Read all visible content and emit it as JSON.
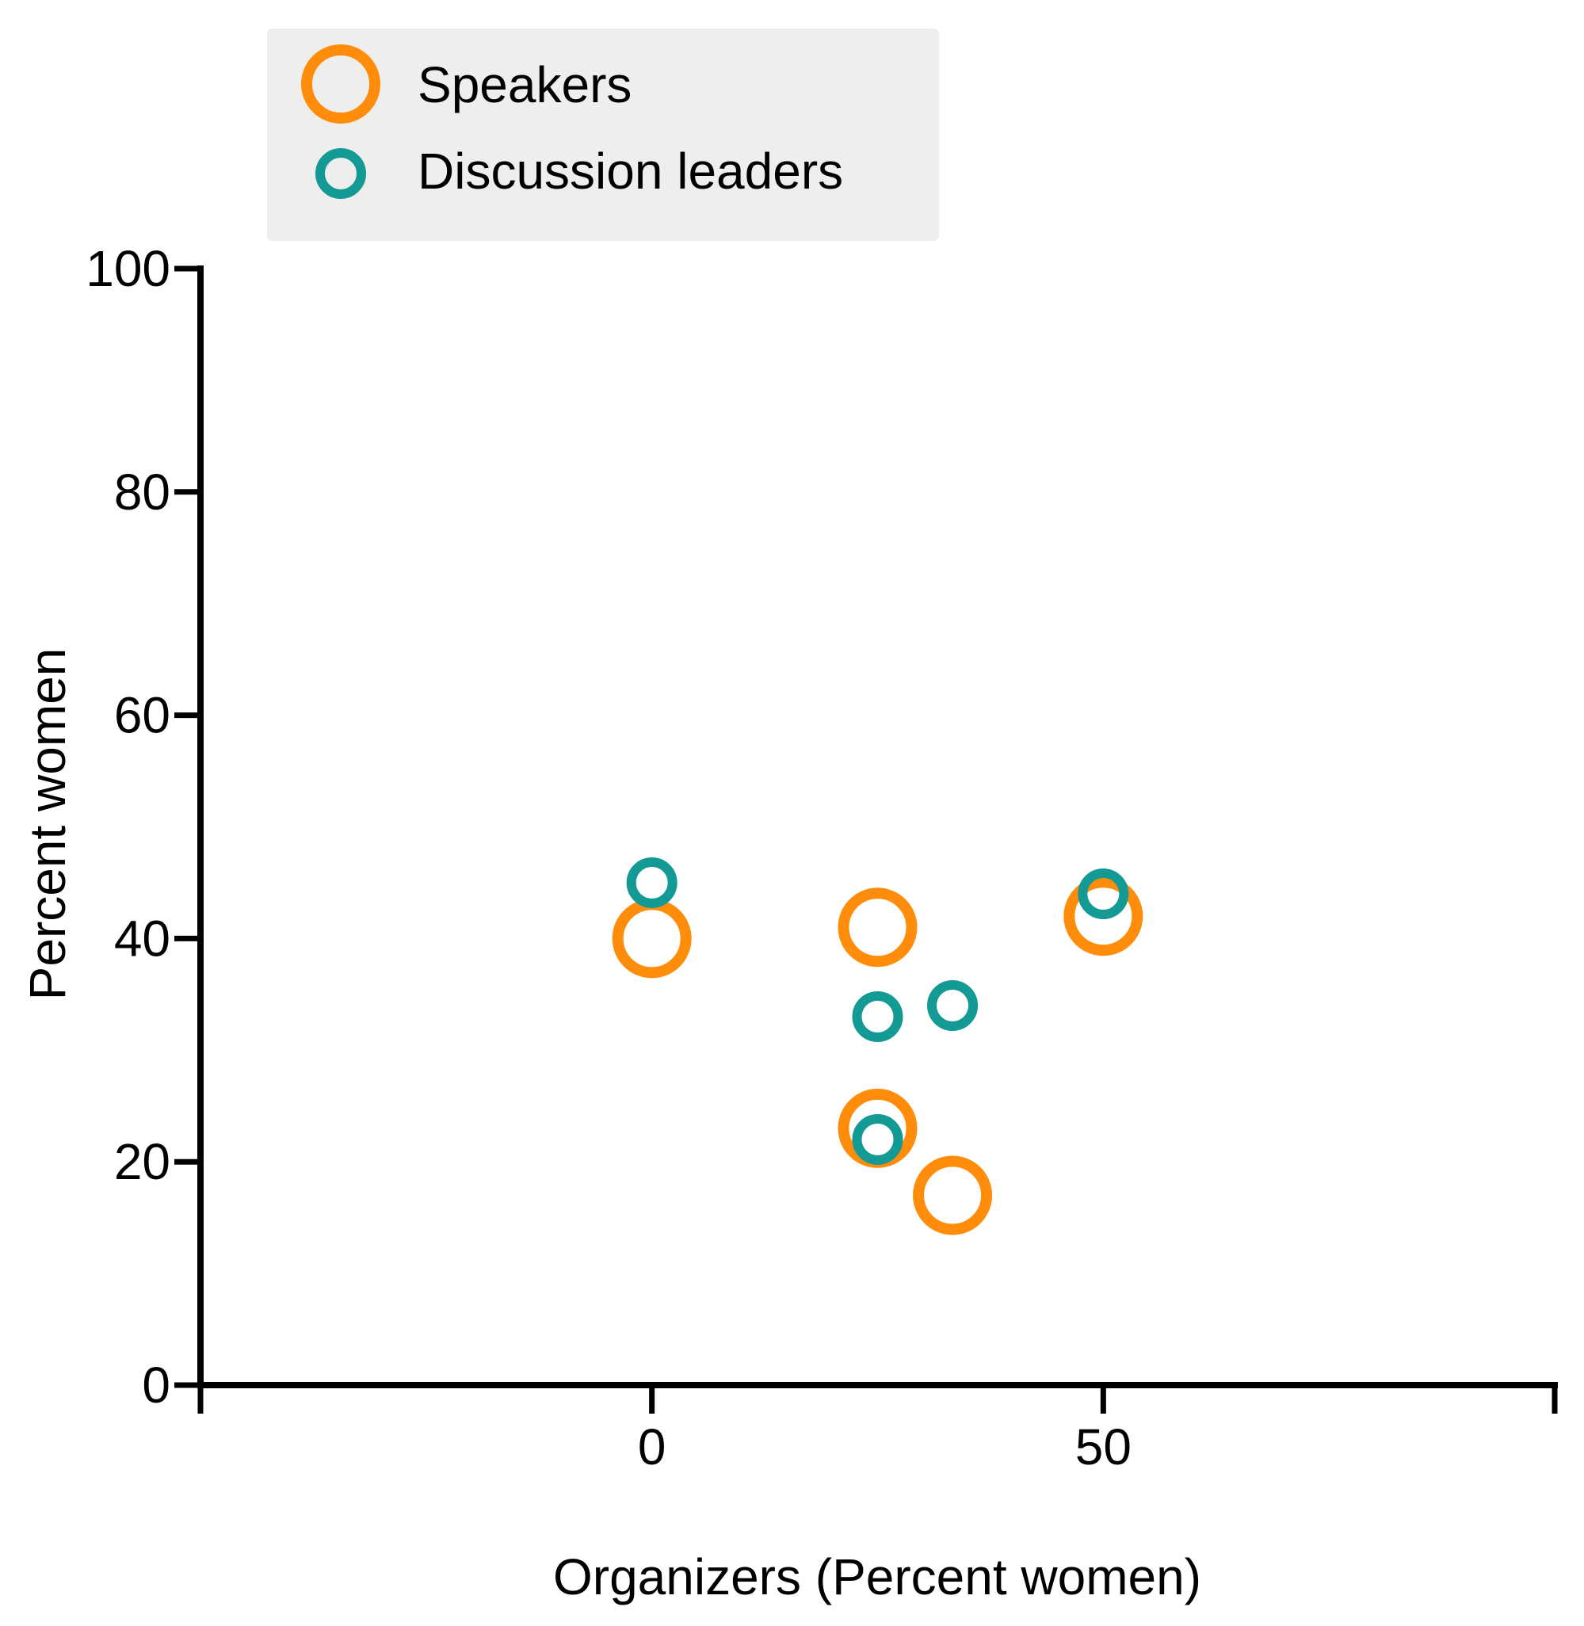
{
  "chart_data": {
    "type": "scatter",
    "title": "",
    "xlabel": "Organizers (Percent women)",
    "ylabel": "Percent women",
    "xlim": [
      -50,
      100
    ],
    "ylim": [
      0,
      100
    ],
    "x_ticks": [
      -50,
      0,
      50,
      100
    ],
    "x_tick_labels": [
      "",
      "0",
      "50",
      ""
    ],
    "y_ticks": [
      0,
      20,
      40,
      60,
      80,
      100
    ],
    "y_tick_labels": [
      "0",
      "20",
      "40",
      "60",
      "80",
      "100"
    ],
    "grid": false,
    "legend_position": "top-left",
    "series": [
      {
        "name": "Speakers",
        "color": "#FF8C0A",
        "marker": "large-hollow-circle",
        "points": [
          {
            "x": 0,
            "y": 40
          },
          {
            "x": 25,
            "y": 41
          },
          {
            "x": 25,
            "y": 23
          },
          {
            "x": 33.3,
            "y": 17
          },
          {
            "x": 50,
            "y": 42
          }
        ]
      },
      {
        "name": "Discussion leaders",
        "color": "#139A95",
        "marker": "small-hollow-circle",
        "points": [
          {
            "x": 0,
            "y": 45
          },
          {
            "x": 25,
            "y": 33
          },
          {
            "x": 25,
            "y": 22
          },
          {
            "x": 33.3,
            "y": 34
          },
          {
            "x": 50,
            "y": 44
          }
        ]
      }
    ]
  }
}
